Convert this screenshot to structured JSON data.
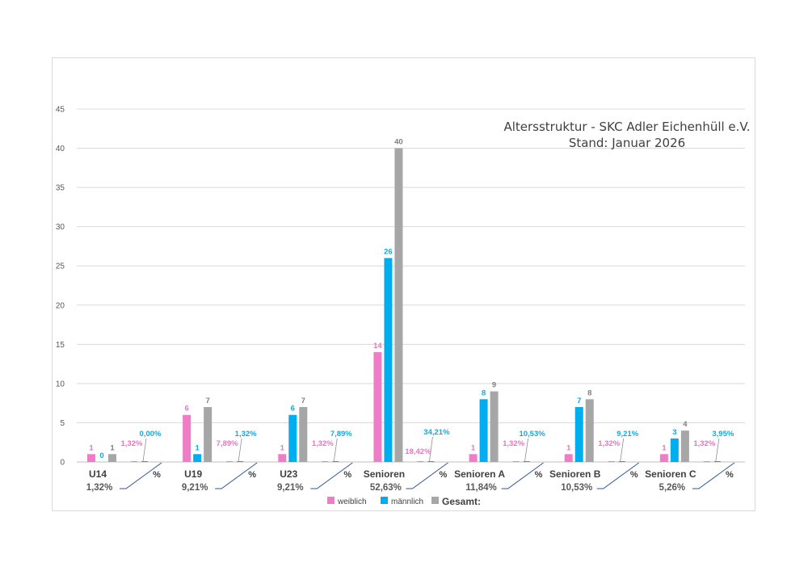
{
  "chart_data": {
    "type": "bar",
    "title_lines": [
      "Altersstruktur - SKC Adler Eichenhüll e.V.",
      "Stand: Januar 2026"
    ],
    "ylim": [
      0,
      45
    ],
    "yticks": [
      0,
      5,
      10,
      15,
      20,
      25,
      30,
      35,
      40,
      45
    ],
    "grid": true,
    "legend_position": "bottom",
    "colors": {
      "weiblich": "#f07cc8",
      "maennlich": "#00aeef",
      "gesamt": "#a6a6a6",
      "pct_weiblich_text": "#e676c2",
      "pct_maennlich_text": "#1aa7d9",
      "gesamt_text": "#7f7f7f",
      "leader": "#2f5597"
    },
    "series": [
      {
        "name": "weiblich"
      },
      {
        "name": "männlich"
      },
      {
        "name": "Gesamt:"
      }
    ],
    "groups": [
      {
        "label": "U14",
        "total_pct": "1,32%",
        "weiblich": 1,
        "maennlich": 0,
        "gesamt": 1,
        "pct_label": "%",
        "pct_weiblich": "1,32%",
        "pct_maennlich": "0,00%"
      },
      {
        "label": "U19",
        "total_pct": "9,21%",
        "weiblich": 6,
        "maennlich": 1,
        "gesamt": 7,
        "pct_label": "%",
        "pct_weiblich": "7,89%",
        "pct_maennlich": "1,32%"
      },
      {
        "label": "U23",
        "total_pct": "9,21%",
        "weiblich": 1,
        "maennlich": 6,
        "gesamt": 7,
        "pct_label": "%",
        "pct_weiblich": "1,32%",
        "pct_maennlich": "7,89%"
      },
      {
        "label": "Senioren",
        "total_pct": "52,63%",
        "weiblich": 14,
        "maennlich": 26,
        "gesamt": 40,
        "pct_label": "%",
        "pct_weiblich": "18,42%",
        "pct_maennlich": "34,21%"
      },
      {
        "label": "Senioren A",
        "total_pct": "11,84%",
        "weiblich": 1,
        "maennlich": 8,
        "gesamt": 9,
        "pct_label": "%",
        "pct_weiblich": "1,32%",
        "pct_maennlich": "10,53%"
      },
      {
        "label": "Senioren B",
        "total_pct": "10,53%",
        "weiblich": 1,
        "maennlich": 7,
        "gesamt": 8,
        "pct_label": "%",
        "pct_weiblich": "1,32%",
        "pct_maennlich": "9,21%"
      },
      {
        "label": "Senioren C",
        "total_pct": "5,26%",
        "weiblich": 1,
        "maennlich": 3,
        "gesamt": 4,
        "pct_label": "%",
        "pct_weiblich": "1,32%",
        "pct_maennlich": "3,95%"
      }
    ]
  }
}
